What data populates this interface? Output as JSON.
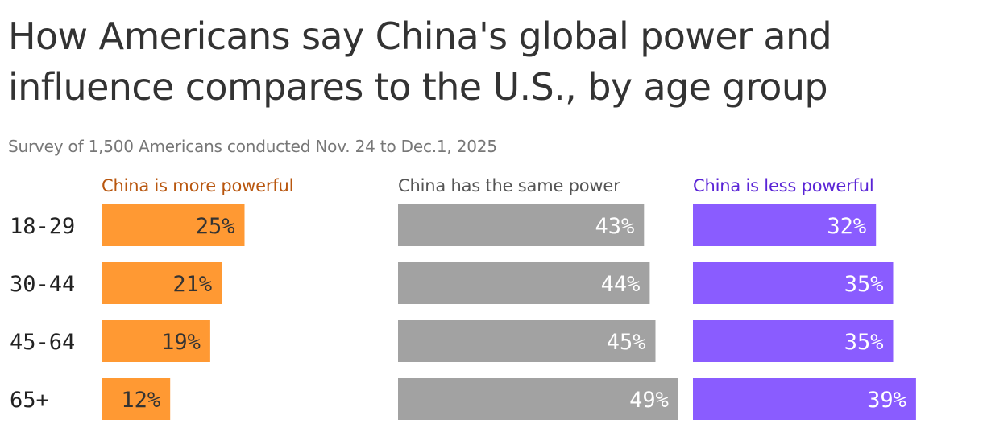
{
  "chart_data": {
    "type": "bar",
    "title": "How Americans say China's global power and influence compares to the U.S., by age group",
    "subtitle": "Survey of 1,500 Americans conducted Nov. 24 to Dec.1, 2025",
    "categories": [
      "18-29",
      "30-44",
      "45-64",
      "65+"
    ],
    "series": [
      {
        "name": "China is more powerful",
        "color": "#ff9933",
        "label_color": "#b8560e",
        "value_text_color": "#333333",
        "values": [
          25,
          21,
          19,
          12
        ],
        "labels": [
          "25%",
          "21%",
          "19%",
          "12%"
        ]
      },
      {
        "name": "China has the same power",
        "color": "#a2a2a2",
        "label_color": "#555555",
        "value_text_color": "#ffffff",
        "values": [
          43,
          44,
          45,
          49
        ],
        "labels": [
          "43%",
          "44%",
          "45%",
          "49%"
        ]
      },
      {
        "name": "China is less powerful",
        "color": "#8a5cff",
        "label_color": "#5a24d6",
        "value_text_color": "#ffffff",
        "values": [
          32,
          35,
          35,
          39
        ],
        "labels": [
          "32%",
          "35%",
          "35%",
          "39%"
        ]
      }
    ],
    "outside_label_color": "#666666",
    "legend": "top",
    "grid": false
  }
}
